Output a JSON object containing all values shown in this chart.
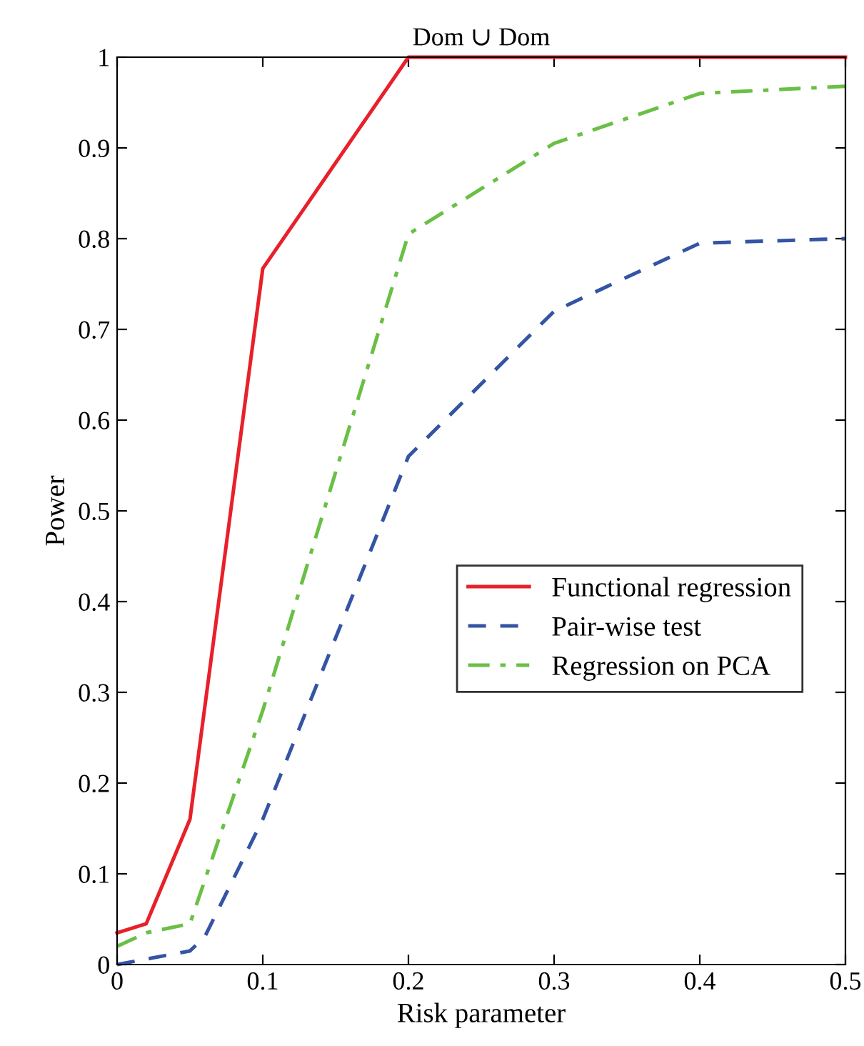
{
  "chart_data": {
    "type": "line",
    "title": "Dom ∪ Dom",
    "xlabel": "Risk parameter",
    "ylabel": "Power",
    "xlim": [
      0,
      0.5
    ],
    "xticks": [
      0,
      0.1,
      0.2,
      0.3,
      0.4,
      0.5
    ],
    "ylim": [
      0,
      1
    ],
    "yticks": [
      0,
      0.1,
      0.2,
      0.3,
      0.4,
      0.5,
      0.6,
      0.7,
      0.8,
      0.9,
      1
    ],
    "grid": false,
    "legend": "right",
    "marker": "none",
    "series": [
      {
        "name": "Functional regression",
        "color": "#e8202a",
        "line_style": "solid",
        "x": [
          0,
          0.02,
          0.05,
          0.1,
          0.2,
          0.3,
          0.4,
          0.5
        ],
        "values": [
          0.035,
          0.045,
          0.16,
          0.767,
          1,
          1,
          1,
          1
        ]
      },
      {
        "name": "Pair-wise test",
        "color": "#3454a4",
        "line_style": "dashed",
        "x": [
          0,
          0.05,
          0.06,
          0.1,
          0.2,
          0.3,
          0.4,
          0.5
        ],
        "values": [
          0,
          0.015,
          0.03,
          0.16,
          0.56,
          0.72,
          0.795,
          0.8
        ]
      },
      {
        "name": "Regression on PCA",
        "color": "#6abf45",
        "line_style": "dashdot",
        "x": [
          0,
          0.02,
          0.05,
          0.1,
          0.2,
          0.3,
          0.4,
          0.5
        ],
        "values": [
          0.02,
          0.035,
          0.045,
          0.28,
          0.805,
          0.905,
          0.96,
          0.968
        ]
      }
    ]
  }
}
